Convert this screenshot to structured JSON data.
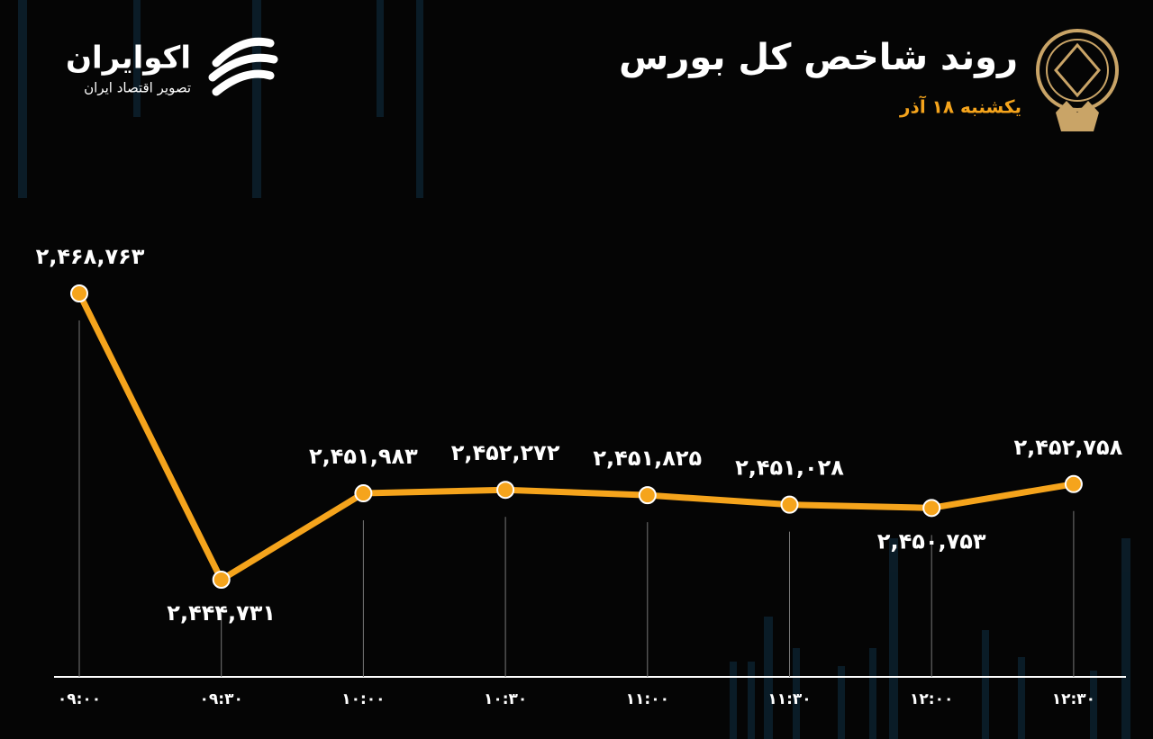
{
  "brand": {
    "name": "اکوایران",
    "tagline": "تصویر اقتصاد ایران"
  },
  "chart_data": {
    "type": "line",
    "title": "روند شاخص کل بورس",
    "subtitle": "یکشنبه ۱۸ آذر",
    "categories": [
      "۰۹:۰۰",
      "۰۹:۳۰",
      "۱۰:۰۰",
      "۱۰:۳۰",
      "۱۱:۰۰",
      "۱۱:۳۰",
      "۱۲:۰۰",
      "۱۲:۳۰"
    ],
    "series": [
      {
        "name": "شاخص کل",
        "color": "#f5a41c",
        "values": [
          2468763,
          2444731,
          2451983,
          2452272,
          2451825,
          2451028,
          2450753,
          2452758
        ],
        "value_labels": [
          "۲,۴۶۸,۷۶۳",
          "۲,۴۴۴,۷۳۱",
          "۲,۴۵۱,۹۸۳",
          "۲,۴۵۲,۲۷۲",
          "۲,۴۵۱,۸۲۵",
          "۲,۴۵۱,۰۲۸",
          "۲,۴۵۰,۷۵۳",
          "۲,۴۵۲,۷۵۸"
        ]
      }
    ]
  }
}
